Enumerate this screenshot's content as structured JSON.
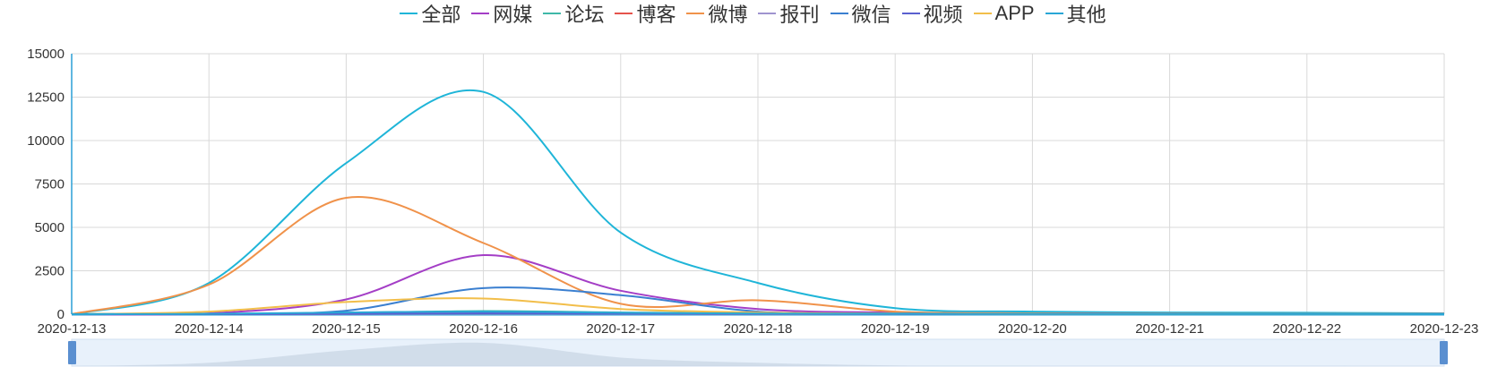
{
  "chart_data": {
    "type": "line",
    "title": "",
    "xlabel": "",
    "ylabel": "",
    "x": [
      "2020-12-13",
      "2020-12-14",
      "2020-12-15",
      "2020-12-16",
      "2020-12-17",
      "2020-12-18",
      "2020-12-19",
      "2020-12-20",
      "2020-12-21",
      "2020-12-22",
      "2020-12-23"
    ],
    "ylim": [
      0,
      15000
    ],
    "yticks": [
      "0",
      "2500",
      "5000",
      "7500",
      "10000",
      "12500",
      "15000"
    ],
    "grid": true,
    "legend_position": "top-center",
    "smooth": true,
    "series": [
      {
        "name": "全部",
        "color": "#1fb5d8",
        "values": [
          0,
          1800,
          8700,
          12800,
          4700,
          1800,
          350,
          150,
          100,
          80,
          50
        ]
      },
      {
        "name": "网媒",
        "color": "#a43ec6",
        "values": [
          0,
          50,
          850,
          3400,
          1350,
          300,
          100,
          50,
          30,
          20,
          10
        ]
      },
      {
        "name": "论坛",
        "color": "#3fb8a8",
        "values": [
          0,
          10,
          80,
          180,
          100,
          40,
          20,
          10,
          5,
          5,
          0
        ]
      },
      {
        "name": "博客",
        "color": "#e5534b",
        "values": [
          0,
          0,
          20,
          40,
          30,
          20,
          10,
          5,
          0,
          0,
          0
        ]
      },
      {
        "name": "微博",
        "color": "#f0924a",
        "values": [
          0,
          1700,
          6700,
          4100,
          600,
          800,
          150,
          50,
          30,
          20,
          10
        ]
      },
      {
        "name": "报刊",
        "color": "#9f94cf",
        "values": [
          0,
          0,
          10,
          30,
          20,
          10,
          5,
          0,
          0,
          0,
          0
        ]
      },
      {
        "name": "微信",
        "color": "#3a7fd0",
        "values": [
          0,
          20,
          200,
          1500,
          1100,
          150,
          50,
          20,
          10,
          10,
          0
        ]
      },
      {
        "name": "视频",
        "color": "#5a5fcf",
        "values": [
          0,
          0,
          20,
          50,
          30,
          20,
          10,
          5,
          0,
          0,
          0
        ]
      },
      {
        "name": "APP",
        "color": "#f2be4a",
        "values": [
          0,
          150,
          700,
          900,
          300,
          100,
          30,
          10,
          5,
          5,
          0
        ]
      },
      {
        "name": "其他",
        "color": "#28a6d6",
        "values": [
          0,
          20,
          100,
          150,
          80,
          40,
          20,
          10,
          5,
          5,
          0
        ]
      }
    ],
    "overview_series": [
      0,
      1800,
      8700,
      12800,
      4700,
      1800,
      350,
      150,
      100,
      80,
      50
    ]
  }
}
